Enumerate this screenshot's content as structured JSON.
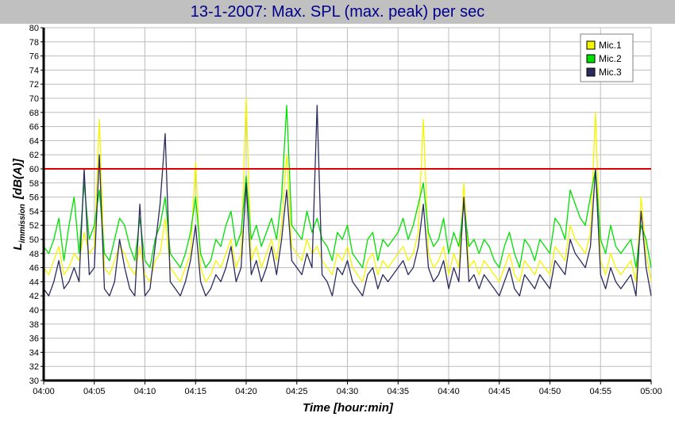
{
  "chart_data": {
    "type": "line",
    "title": "13-1-2007: Max. SPL (max. peak) per sec",
    "xlabel": "Time [hour:min]",
    "ylabel": {
      "main": "L",
      "subscript": "immission",
      "unit": "[dB(A)]"
    },
    "ylim": [
      30,
      80
    ],
    "ytick_step": 2,
    "x_ticks": [
      "04:00",
      "04:05",
      "04:10",
      "04:15",
      "04:20",
      "04:25",
      "04:30",
      "04:35",
      "04:40",
      "04:45",
      "04:50",
      "04:55",
      "05:00"
    ],
    "xlim_minutes": [
      0,
      60
    ],
    "grid": true,
    "legend_position": "top-right",
    "threshold": {
      "value": 60,
      "color": "#e00000"
    },
    "series": [
      {
        "name": "Mic.1",
        "color": "#f5f500",
        "x_minutes": [
          0,
          0.5,
          1,
          1.5,
          2,
          2.5,
          3,
          3.5,
          4,
          4.5,
          5,
          5.5,
          6,
          6.5,
          7,
          7.5,
          8,
          8.5,
          9,
          9.5,
          10,
          10.5,
          11,
          11.5,
          12,
          12.5,
          13,
          13.5,
          14,
          14.5,
          15,
          15.5,
          16,
          16.5,
          17,
          17.5,
          18,
          18.5,
          19,
          19.5,
          20,
          20.5,
          21,
          21.5,
          22,
          22.5,
          23,
          23.5,
          24,
          24.5,
          25,
          25.5,
          26,
          26.5,
          27,
          27.5,
          28,
          28.5,
          29,
          29.5,
          30,
          30.5,
          31,
          31.5,
          32,
          32.5,
          33,
          33.5,
          34,
          34.5,
          35,
          35.5,
          36,
          36.5,
          37,
          37.5,
          38,
          38.5,
          39,
          39.5,
          40,
          40.5,
          41,
          41.5,
          42,
          42.5,
          43,
          43.5,
          44,
          44.5,
          45,
          45.5,
          46,
          46.5,
          47,
          47.5,
          48,
          48.5,
          49,
          49.5,
          50,
          50.5,
          51,
          51.5,
          52,
          52.5,
          53,
          53.5,
          54,
          54.5,
          55,
          55.5,
          56,
          56.5,
          57,
          57.5,
          58,
          58.5,
          59,
          59.5,
          60
        ],
        "values": [
          46,
          45,
          47,
          49,
          45,
          46,
          48,
          47,
          51,
          48,
          49,
          67,
          46,
          45,
          47,
          49,
          48,
          46,
          45,
          49,
          45,
          44,
          47,
          48,
          53,
          46,
          45,
          44,
          46,
          48,
          61,
          46,
          44,
          45,
          47,
          46,
          48,
          50,
          46,
          48,
          70,
          47,
          49,
          46,
          48,
          50,
          47,
          52,
          62,
          49,
          48,
          47,
          50,
          48,
          49,
          47,
          46,
          45,
          48,
          47,
          49,
          46,
          45,
          44,
          47,
          48,
          45,
          47,
          46,
          47,
          48,
          49,
          47,
          48,
          51,
          67,
          48,
          46,
          47,
          49,
          45,
          48,
          46,
          58,
          46,
          47,
          45,
          47,
          46,
          45,
          44,
          46,
          48,
          45,
          44,
          47,
          46,
          45,
          47,
          46,
          45,
          49,
          48,
          47,
          52,
          50,
          49,
          48,
          51,
          68,
          47,
          45,
          48,
          46,
          45,
          46,
          47,
          44,
          56,
          48,
          44
        ]
      },
      {
        "name": "Mic.2",
        "color": "#00e000",
        "x_minutes": [
          0,
          0.5,
          1,
          1.5,
          2,
          2.5,
          3,
          3.5,
          4,
          4.5,
          5,
          5.5,
          6,
          6.5,
          7,
          7.5,
          8,
          8.5,
          9,
          9.5,
          10,
          10.5,
          11,
          11.5,
          12,
          12.5,
          13,
          13.5,
          14,
          14.5,
          15,
          15.5,
          16,
          16.5,
          17,
          17.5,
          18,
          18.5,
          19,
          19.5,
          20,
          20.5,
          21,
          21.5,
          22,
          22.5,
          23,
          23.5,
          24,
          24.5,
          25,
          25.5,
          26,
          26.5,
          27,
          27.5,
          28,
          28.5,
          29,
          29.5,
          30,
          30.5,
          31,
          31.5,
          32,
          32.5,
          33,
          33.5,
          34,
          34.5,
          35,
          35.5,
          36,
          36.5,
          37,
          37.5,
          38,
          38.5,
          39,
          39.5,
          40,
          40.5,
          41,
          41.5,
          42,
          42.5,
          43,
          43.5,
          44,
          44.5,
          45,
          45.5,
          46,
          46.5,
          47,
          47.5,
          48,
          48.5,
          49,
          49.5,
          50,
          50.5,
          51,
          51.5,
          52,
          52.5,
          53,
          53.5,
          54,
          54.5,
          55,
          55.5,
          56,
          56.5,
          57,
          57.5,
          58,
          58.5,
          59,
          59.5,
          60
        ],
        "values": [
          49,
          48,
          50,
          53,
          47,
          52,
          56,
          48,
          58,
          50,
          52,
          57,
          48,
          47,
          50,
          53,
          52,
          49,
          47,
          53,
          47,
          46,
          50,
          52,
          56,
          48,
          47,
          46,
          48,
          51,
          56,
          48,
          46,
          47,
          50,
          49,
          52,
          54,
          49,
          51,
          59,
          50,
          52,
          49,
          51,
          53,
          50,
          56,
          69,
          52,
          51,
          50,
          54,
          51,
          53,
          50,
          49,
          47,
          51,
          50,
          52,
          48,
          47,
          46,
          50,
          51,
          47,
          50,
          49,
          50,
          51,
          53,
          50,
          52,
          55,
          58,
          51,
          49,
          50,
          53,
          48,
          51,
          49,
          55,
          49,
          50,
          48,
          50,
          49,
          47,
          46,
          49,
          51,
          48,
          46,
          50,
          49,
          47,
          50,
          49,
          48,
          53,
          52,
          50,
          57,
          55,
          53,
          52,
          56,
          60,
          50,
          48,
          52,
          49,
          48,
          49,
          50,
          46,
          52,
          50,
          46
        ]
      },
      {
        "name": "Mic.3",
        "color": "#2b2b5e",
        "x_minutes": [
          0,
          0.5,
          1,
          1.5,
          2,
          2.5,
          3,
          3.5,
          4,
          4.5,
          5,
          5.5,
          6,
          6.5,
          7,
          7.5,
          8,
          8.5,
          9,
          9.5,
          10,
          10.5,
          11,
          11.5,
          12,
          12.5,
          13,
          13.5,
          14,
          14.5,
          15,
          15.5,
          16,
          16.5,
          17,
          17.5,
          18,
          18.5,
          19,
          19.5,
          20,
          20.5,
          21,
          21.5,
          22,
          22.5,
          23,
          23.5,
          24,
          24.5,
          25,
          25.5,
          26,
          26.5,
          27,
          27.5,
          28,
          28.5,
          29,
          29.5,
          30,
          30.5,
          31,
          31.5,
          32,
          32.5,
          33,
          33.5,
          34,
          34.5,
          35,
          35.5,
          36,
          36.5,
          37,
          37.5,
          38,
          38.5,
          39,
          39.5,
          40,
          40.5,
          41,
          41.5,
          42,
          42.5,
          43,
          43.5,
          44,
          44.5,
          45,
          45.5,
          46,
          46.5,
          47,
          47.5,
          48,
          48.5,
          49,
          49.5,
          50,
          50.5,
          51,
          51.5,
          52,
          52.5,
          53,
          53.5,
          54,
          54.5,
          55,
          55.5,
          56,
          56.5,
          57,
          57.5,
          58,
          58.5,
          59,
          59.5,
          60
        ],
        "values": [
          43,
          42,
          44,
          47,
          43,
          44,
          46,
          44,
          60,
          45,
          46,
          62,
          43,
          42,
          44,
          50,
          46,
          43,
          42,
          55,
          42,
          43,
          49,
          55,
          65,
          44,
          43,
          42,
          44,
          47,
          52,
          44,
          42,
          43,
          45,
          44,
          46,
          49,
          44,
          46,
          58,
          45,
          47,
          44,
          46,
          49,
          45,
          50,
          57,
          47,
          46,
          45,
          48,
          46,
          69,
          45,
          44,
          42,
          46,
          45,
          47,
          44,
          43,
          42,
          45,
          46,
          43,
          45,
          44,
          45,
          46,
          47,
          45,
          46,
          49,
          55,
          46,
          44,
          45,
          47,
          43,
          46,
          44,
          56,
          44,
          45,
          43,
          45,
          44,
          43,
          42,
          44,
          46,
          43,
          42,
          45,
          44,
          43,
          45,
          44,
          43,
          47,
          46,
          45,
          50,
          48,
          47,
          46,
          49,
          60,
          45,
          43,
          46,
          44,
          43,
          44,
          45,
          42,
          54,
          46,
          42
        ]
      }
    ]
  }
}
